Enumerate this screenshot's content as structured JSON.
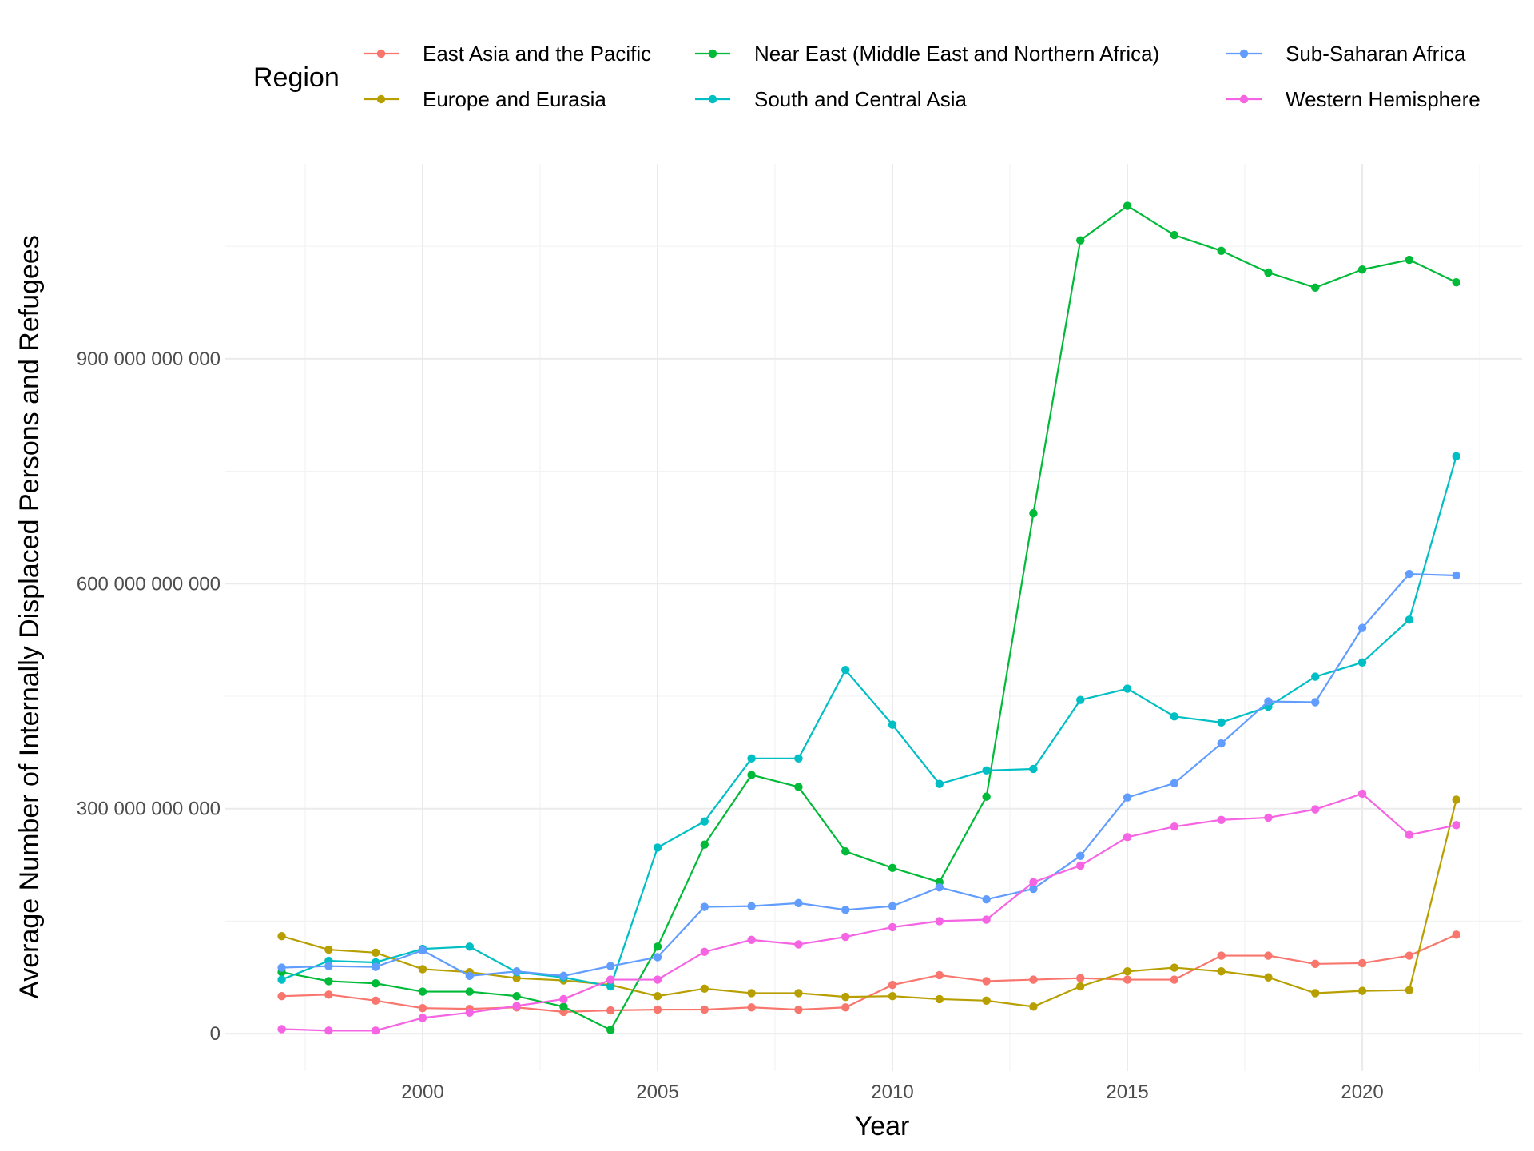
{
  "chart_data": {
    "type": "line",
    "title": "",
    "xlabel": "Year",
    "ylabel": "Average Number of Internally Displaced Persons and Refugees",
    "legend_title": "Region",
    "legend_position": "top",
    "grid": true,
    "xlim": [
      1995.8,
      2023.4
    ],
    "ylim": [
      -50000000000,
      1160000000000
    ],
    "x_ticks": [
      2000,
      2005,
      2010,
      2015,
      2020
    ],
    "y_ticks": [
      0,
      300000000000,
      600000000000,
      900000000000
    ],
    "y_tick_labels": [
      "0",
      "300 000 000 000",
      "600 000 000 000",
      "900 000 000 000"
    ],
    "x": [
      1997,
      1998,
      1999,
      2000,
      2001,
      2002,
      2003,
      2004,
      2005,
      2006,
      2007,
      2008,
      2009,
      2010,
      2011,
      2012,
      2013,
      2014,
      2015,
      2016,
      2017,
      2018,
      2019,
      2020,
      2021,
      2022
    ],
    "series": [
      {
        "name": "East Asia and the Pacific",
        "color": "#F8766D",
        "values": [
          50000000000,
          52000000000,
          44000000000,
          34000000000,
          33000000000,
          35000000000,
          29000000000,
          31000000000,
          32000000000,
          32000000000,
          35000000000,
          32000000000,
          35000000000,
          65000000000,
          78000000000,
          70000000000,
          72000000000,
          74000000000,
          72000000000,
          72000000000,
          104000000000,
          104000000000,
          93000000000,
          94000000000,
          104000000000,
          132000000000
        ]
      },
      {
        "name": "Europe and Eurasia",
        "color": "#B79F00",
        "values": [
          130000000000,
          112000000000,
          108000000000,
          86000000000,
          82000000000,
          74000000000,
          71000000000,
          65000000000,
          50000000000,
          60000000000,
          54000000000,
          54000000000,
          49000000000,
          50000000000,
          46000000000,
          44000000000,
          36000000000,
          63000000000,
          83000000000,
          88000000000,
          83000000000,
          75000000000,
          54000000000,
          57000000000,
          58000000000,
          312000000000
        ]
      },
      {
        "name": "Near East (Middle East and Northern Africa)",
        "color": "#00BA38",
        "values": [
          82000000000,
          70000000000,
          67000000000,
          56000000000,
          56000000000,
          50000000000,
          36000000000,
          5000000000,
          116000000000,
          252000000000,
          345000000000,
          329000000000,
          243000000000,
          221000000000,
          202000000000,
          316000000000,
          694000000000,
          1058000000000,
          1104000000000,
          1065000000000,
          1044000000000,
          1015000000000,
          995000000000,
          1019000000000,
          1032000000000,
          1002000000000
        ]
      },
      {
        "name": "South and Central Asia",
        "color": "#00BFC4",
        "values": [
          72000000000,
          97000000000,
          95000000000,
          113000000000,
          116000000000,
          82000000000,
          75000000000,
          63000000000,
          248000000000,
          283000000000,
          367000000000,
          367000000000,
          485000000000,
          412000000000,
          333000000000,
          351000000000,
          353000000000,
          445000000000,
          460000000000,
          423000000000,
          415000000000,
          436000000000,
          476000000000,
          495000000000,
          552000000000,
          770000000000
        ]
      },
      {
        "name": "Sub-Saharan Africa",
        "color": "#619CFF",
        "values": [
          88000000000,
          90000000000,
          89000000000,
          111000000000,
          77000000000,
          83000000000,
          77000000000,
          90000000000,
          102000000000,
          169000000000,
          170000000000,
          174000000000,
          165000000000,
          170000000000,
          195000000000,
          179000000000,
          193000000000,
          237000000000,
          315000000000,
          334000000000,
          387000000000,
          443000000000,
          442000000000,
          541000000000,
          613000000000,
          611000000000
        ]
      },
      {
        "name": "Western Hemisphere",
        "color": "#F564E3",
        "values": [
          6000000000,
          4000000000,
          4000000000,
          21000000000,
          28000000000,
          37000000000,
          46000000000,
          72000000000,
          72000000000,
          109000000000,
          125000000000,
          119000000000,
          129000000000,
          142000000000,
          150000000000,
          152000000000,
          202000000000,
          224000000000,
          262000000000,
          276000000000,
          285000000000,
          288000000000,
          299000000000,
          320000000000,
          265000000000,
          278000000000
        ]
      }
    ]
  }
}
